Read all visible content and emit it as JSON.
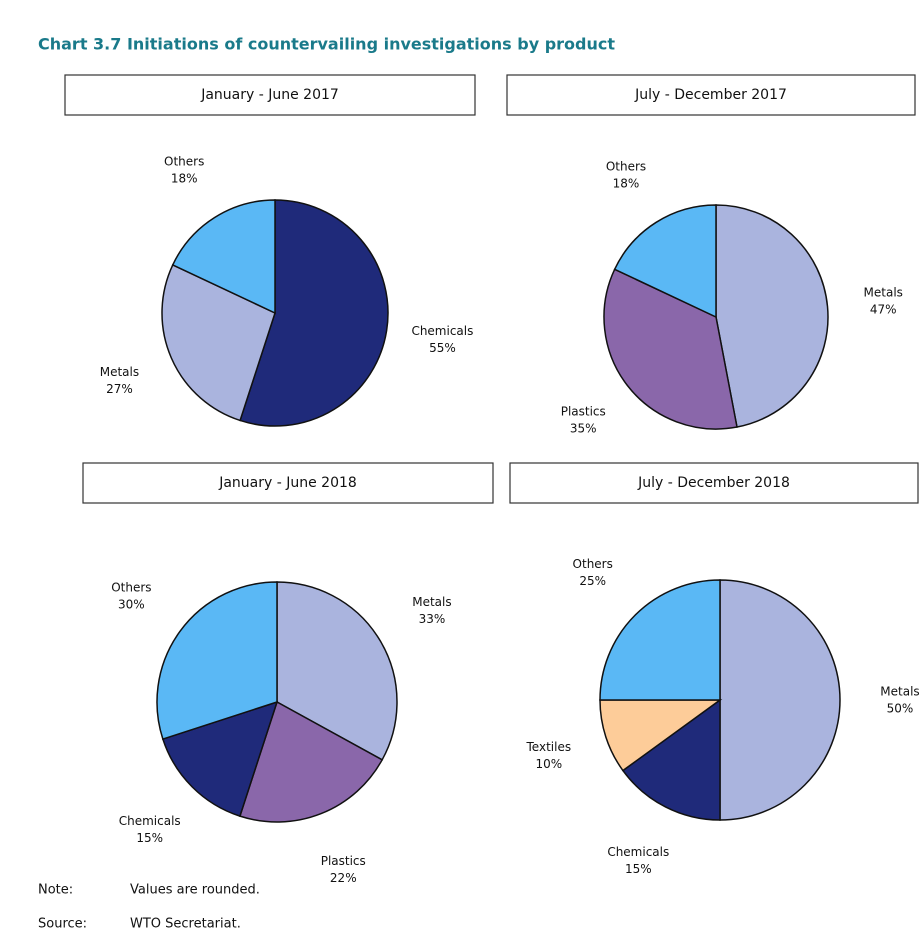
{
  "title": "Chart 3.7 Initiations of countervailing investigations by product",
  "chart_data": [
    {
      "type": "pie",
      "title": "January - June 2017",
      "categories": [
        "Chemicals",
        "Metals",
        "Others"
      ],
      "values": [
        55,
        27,
        18
      ],
      "value_labels": [
        "55%",
        "27%",
        "18%"
      ],
      "colors": [
        "#1f2a7a",
        "#aab4de",
        "#5ab8f5"
      ]
    },
    {
      "type": "pie",
      "title": "July - December 2017",
      "categories": [
        "Metals",
        "Plastics",
        "Others"
      ],
      "values": [
        47,
        35,
        18
      ],
      "value_labels": [
        "47%",
        "35%",
        "18%"
      ],
      "colors": [
        "#aab4de",
        "#8a67aa",
        "#5ab8f5"
      ]
    },
    {
      "type": "pie",
      "title": "January - June 2018",
      "categories": [
        "Metals",
        "Plastics",
        "Chemicals",
        "Others"
      ],
      "values": [
        33,
        22,
        15,
        30
      ],
      "value_labels": [
        "33%",
        "22%",
        "15%",
        "30%"
      ],
      "colors": [
        "#aab4de",
        "#8a67aa",
        "#1f2a7a",
        "#5ab8f5"
      ]
    },
    {
      "type": "pie",
      "title": "July - December 2018",
      "categories": [
        "Metals",
        "Chemicals",
        "Textiles",
        "Others"
      ],
      "values": [
        50,
        15,
        10,
        25
      ],
      "value_labels": [
        "50%",
        "15%",
        "10%",
        "25%"
      ],
      "colors": [
        "#aab4de",
        "#1f2a7a",
        "#fdcc99",
        "#5ab8f5"
      ]
    }
  ],
  "notes": [
    {
      "label": "Note:",
      "text": "Values are rounded."
    },
    {
      "label": "Source:",
      "text": "WTO Secretariat."
    }
  ]
}
